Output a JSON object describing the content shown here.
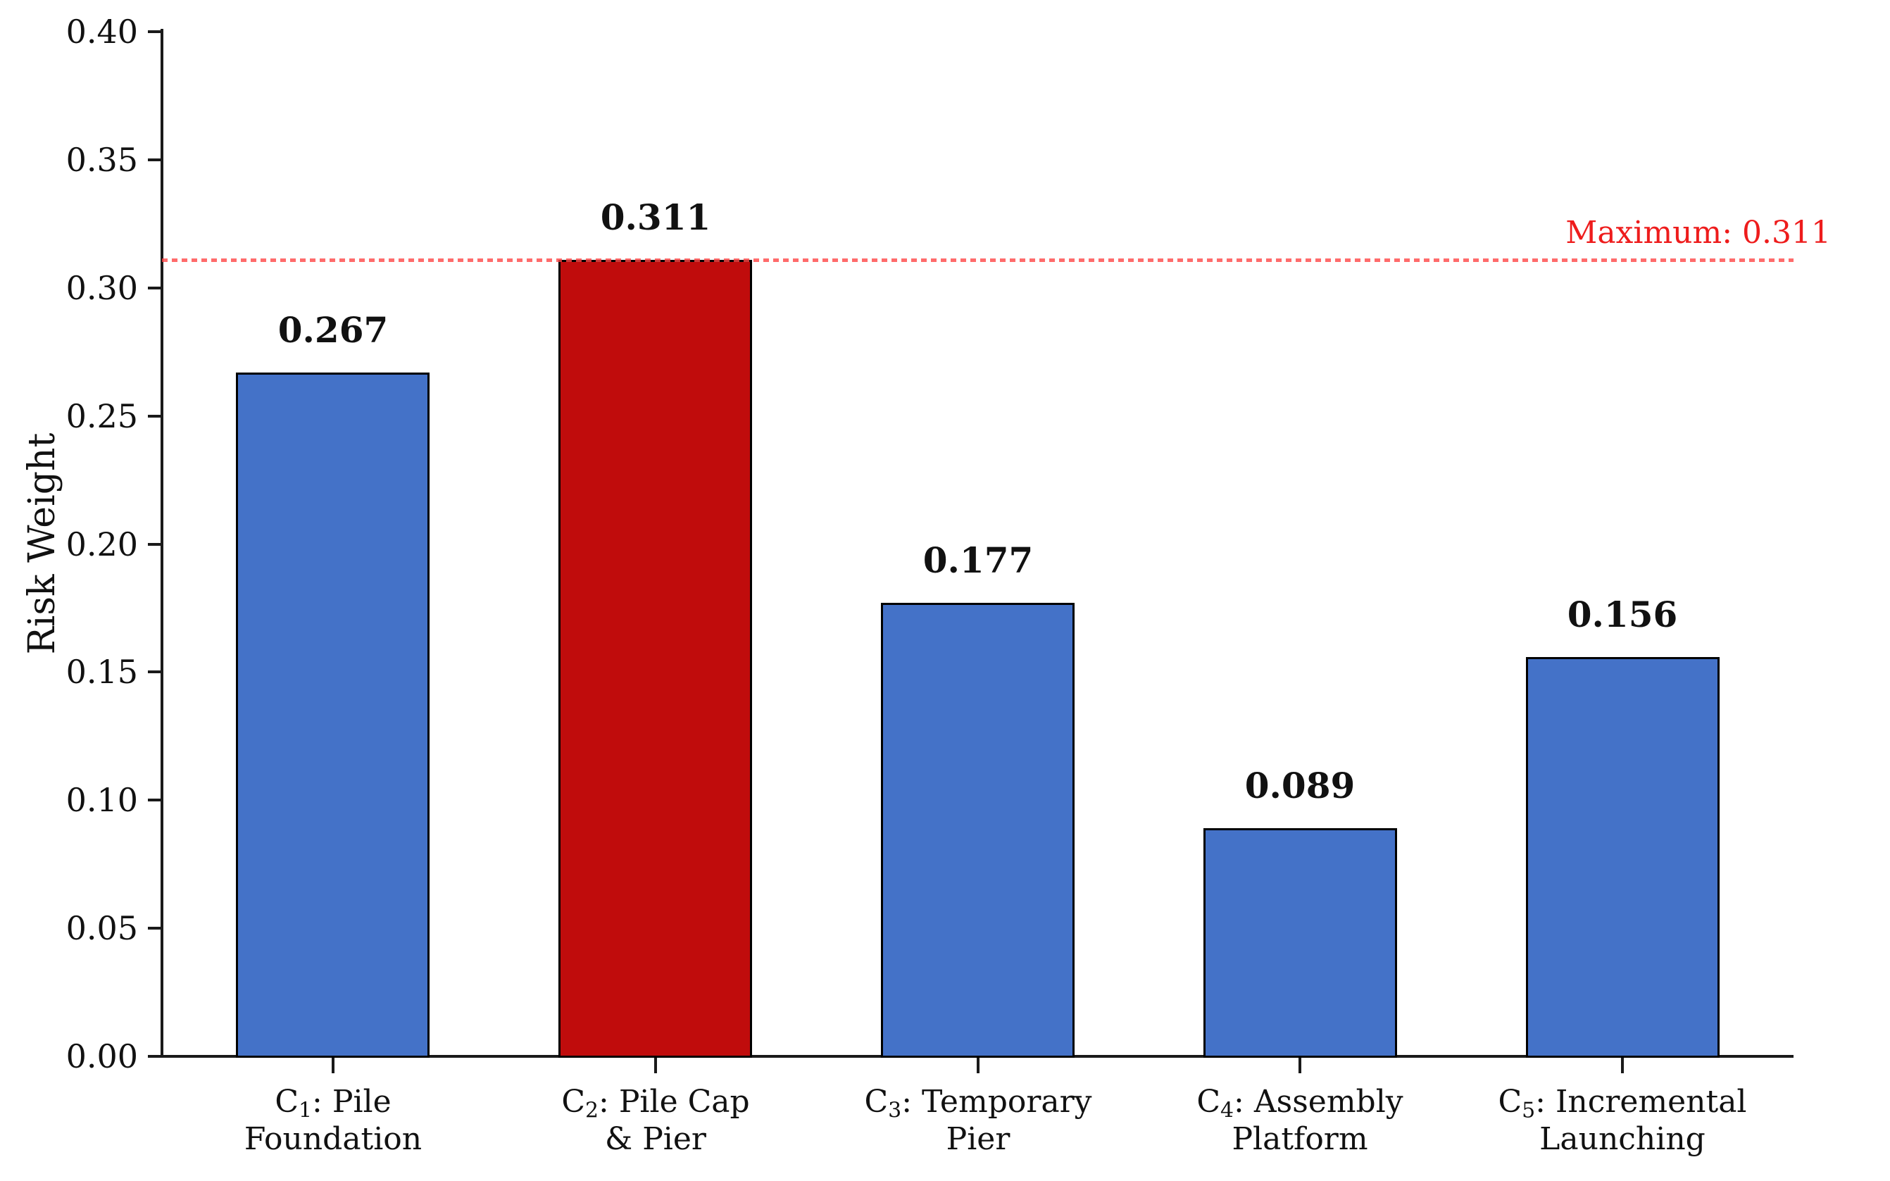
{
  "chart_data": {
    "type": "bar",
    "title": "",
    "xlabel": "",
    "ylabel": "Risk Weight",
    "ylim": [
      0.0,
      0.4
    ],
    "ytick_step": 0.05,
    "ytick_labels": [
      "0.00",
      "0.05",
      "0.10",
      "0.15",
      "0.20",
      "0.25",
      "0.30",
      "0.35",
      "0.40"
    ],
    "grid": "off",
    "legend": "none",
    "categories": [
      {
        "prefix": "C",
        "subscript": "1",
        "line1_rest": ": Pile",
        "line2": "Foundation"
      },
      {
        "prefix": "C",
        "subscript": "2",
        "line1_rest": ": Pile Cap",
        "line2": "& Pier"
      },
      {
        "prefix": "C",
        "subscript": "3",
        "line1_rest": ": Temporary",
        "line2": "Pier"
      },
      {
        "prefix": "C",
        "subscript": "4",
        "line1_rest": ": Assembly",
        "line2": "Platform"
      },
      {
        "prefix": "C",
        "subscript": "5",
        "line1_rest": ": Incremental",
        "line2": "Launching"
      }
    ],
    "values": [
      0.267,
      0.311,
      0.177,
      0.089,
      0.156
    ],
    "value_labels": [
      "0.267",
      "0.311",
      "0.177",
      "0.089",
      "0.156"
    ],
    "highlight_index": 1,
    "colors": {
      "bar_default": "#4472C8",
      "bar_highlight": "#C00C0C",
      "bar_edge": "#000000",
      "dash_line": "rgba(255, 70, 70, 0.8)",
      "annotation_red": "#EE1C1C",
      "axis_black": "#1a1a1a"
    },
    "max_annotation": {
      "value": 0.311,
      "label": "Maximum: 0.311"
    }
  }
}
